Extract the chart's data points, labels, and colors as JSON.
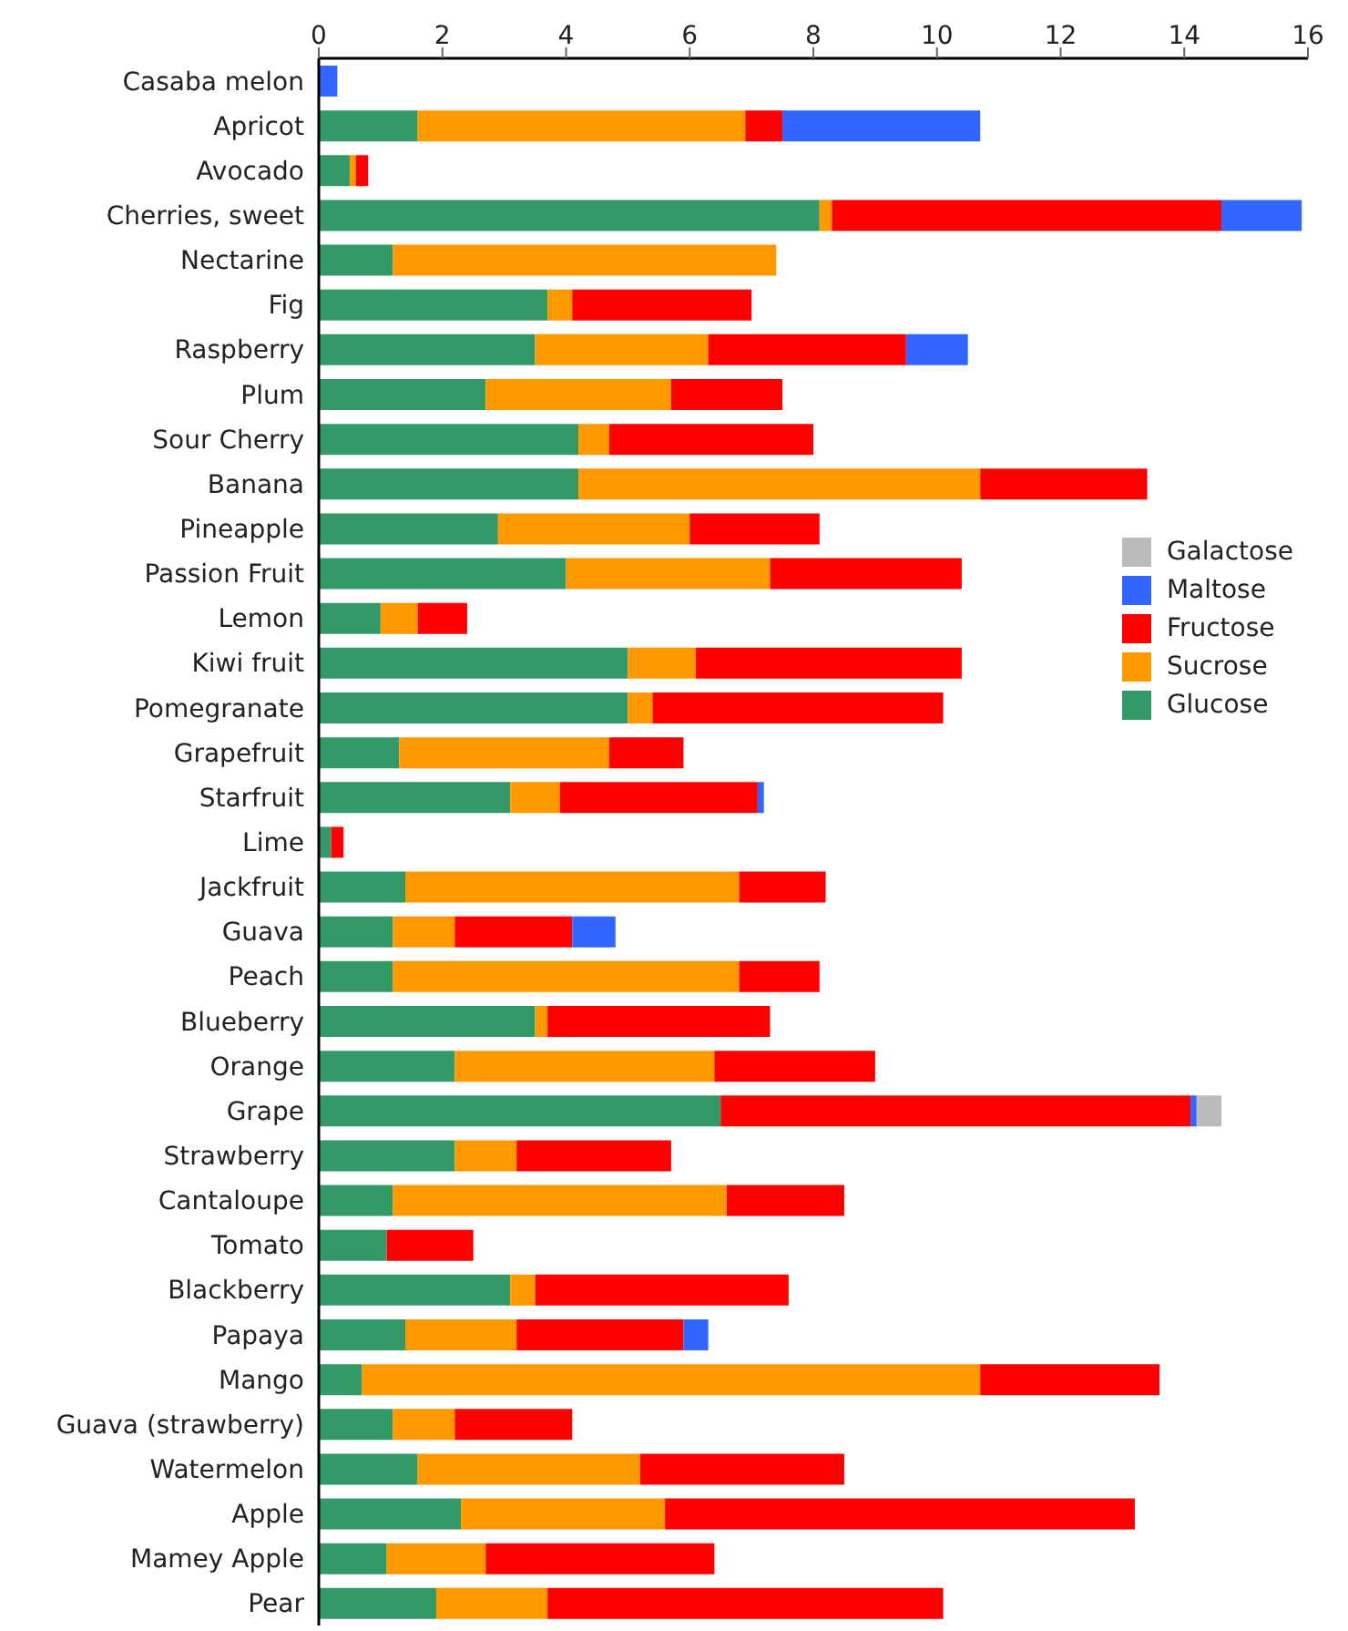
{
  "chart_data": {
    "type": "bar",
    "orientation": "horizontal",
    "stacked": true,
    "categories": [
      "Casaba melon",
      "Apricot",
      "Avocado",
      "Cherries, sweet",
      "Nectarine",
      "Fig",
      "Raspberry",
      "Plum",
      "Sour Cherry",
      "Banana",
      "Pineapple",
      "Passion Fruit",
      "Lemon",
      "Kiwi fruit",
      "Pomegranate",
      "Grapefruit",
      "Starfruit",
      "Lime",
      "Jackfruit",
      "Guava",
      "Peach",
      "Blueberry",
      "Orange",
      "Grape",
      "Strawberry",
      "Cantaloupe",
      "Tomato",
      "Blackberry",
      "Papaya",
      "Mango",
      "Guava (strawberry)",
      "Watermelon",
      "Apple",
      "Mamey Apple",
      "Pear"
    ],
    "series": [
      {
        "name": "Glucose",
        "color": "#339966",
        "values": [
          null,
          1.6,
          0.5,
          8.1,
          1.2,
          3.7,
          3.5,
          2.7,
          4.2,
          4.2,
          2.9,
          4.0,
          1.0,
          5.0,
          5.0,
          1.3,
          3.1,
          0.2,
          1.4,
          1.2,
          1.2,
          3.5,
          2.2,
          6.5,
          2.2,
          1.2,
          1.1,
          3.1,
          1.4,
          0.7,
          1.2,
          1.6,
          2.3,
          1.1,
          1.9
        ]
      },
      {
        "name": "Sucrose",
        "color": "#ff9900",
        "values": [
          null,
          5.3,
          0.1,
          0.2,
          6.2,
          0.4,
          2.8,
          3.0,
          0.5,
          6.5,
          3.1,
          3.3,
          0.6,
          1.1,
          0.4,
          3.4,
          0.8,
          null,
          5.4,
          1.0,
          5.6,
          0.2,
          4.2,
          null,
          1.0,
          5.4,
          null,
          0.4,
          1.8,
          10.0,
          1.0,
          3.6,
          3.3,
          1.6,
          1.8
        ]
      },
      {
        "name": "Fructose",
        "color": "#ff0000",
        "values": [
          null,
          0.6,
          0.2,
          6.3,
          null,
          2.9,
          3.2,
          1.8,
          3.3,
          2.7,
          2.1,
          3.1,
          0.8,
          4.3,
          4.7,
          1.2,
          3.2,
          0.2,
          1.4,
          1.9,
          1.3,
          3.6,
          2.6,
          7.6,
          2.5,
          1.9,
          1.4,
          4.1,
          2.7,
          2.9,
          1.9,
          3.3,
          7.6,
          3.7,
          6.4
        ]
      },
      {
        "name": "Maltose",
        "color": "#3366ff",
        "values": [
          0.3,
          3.2,
          null,
          1.3,
          null,
          null,
          1.0,
          null,
          null,
          null,
          null,
          null,
          null,
          null,
          null,
          null,
          0.1,
          null,
          null,
          0.7,
          null,
          null,
          null,
          0.1,
          null,
          null,
          null,
          null,
          0.4,
          null,
          null,
          null,
          null,
          null,
          null
        ]
      },
      {
        "name": "Galactose",
        "color": "#bbbbbb",
        "values": [
          null,
          null,
          null,
          null,
          null,
          null,
          null,
          null,
          null,
          null,
          null,
          null,
          null,
          null,
          null,
          null,
          null,
          null,
          null,
          null,
          null,
          null,
          null,
          0.4,
          null,
          null,
          null,
          null,
          null,
          null,
          null,
          null,
          null,
          null,
          null
        ]
      }
    ],
    "xlim": [
      0,
      16
    ],
    "xticks": [
      0,
      2,
      4,
      6,
      8,
      10,
      12,
      14,
      16
    ],
    "legend": "right",
    "grid": false
  }
}
